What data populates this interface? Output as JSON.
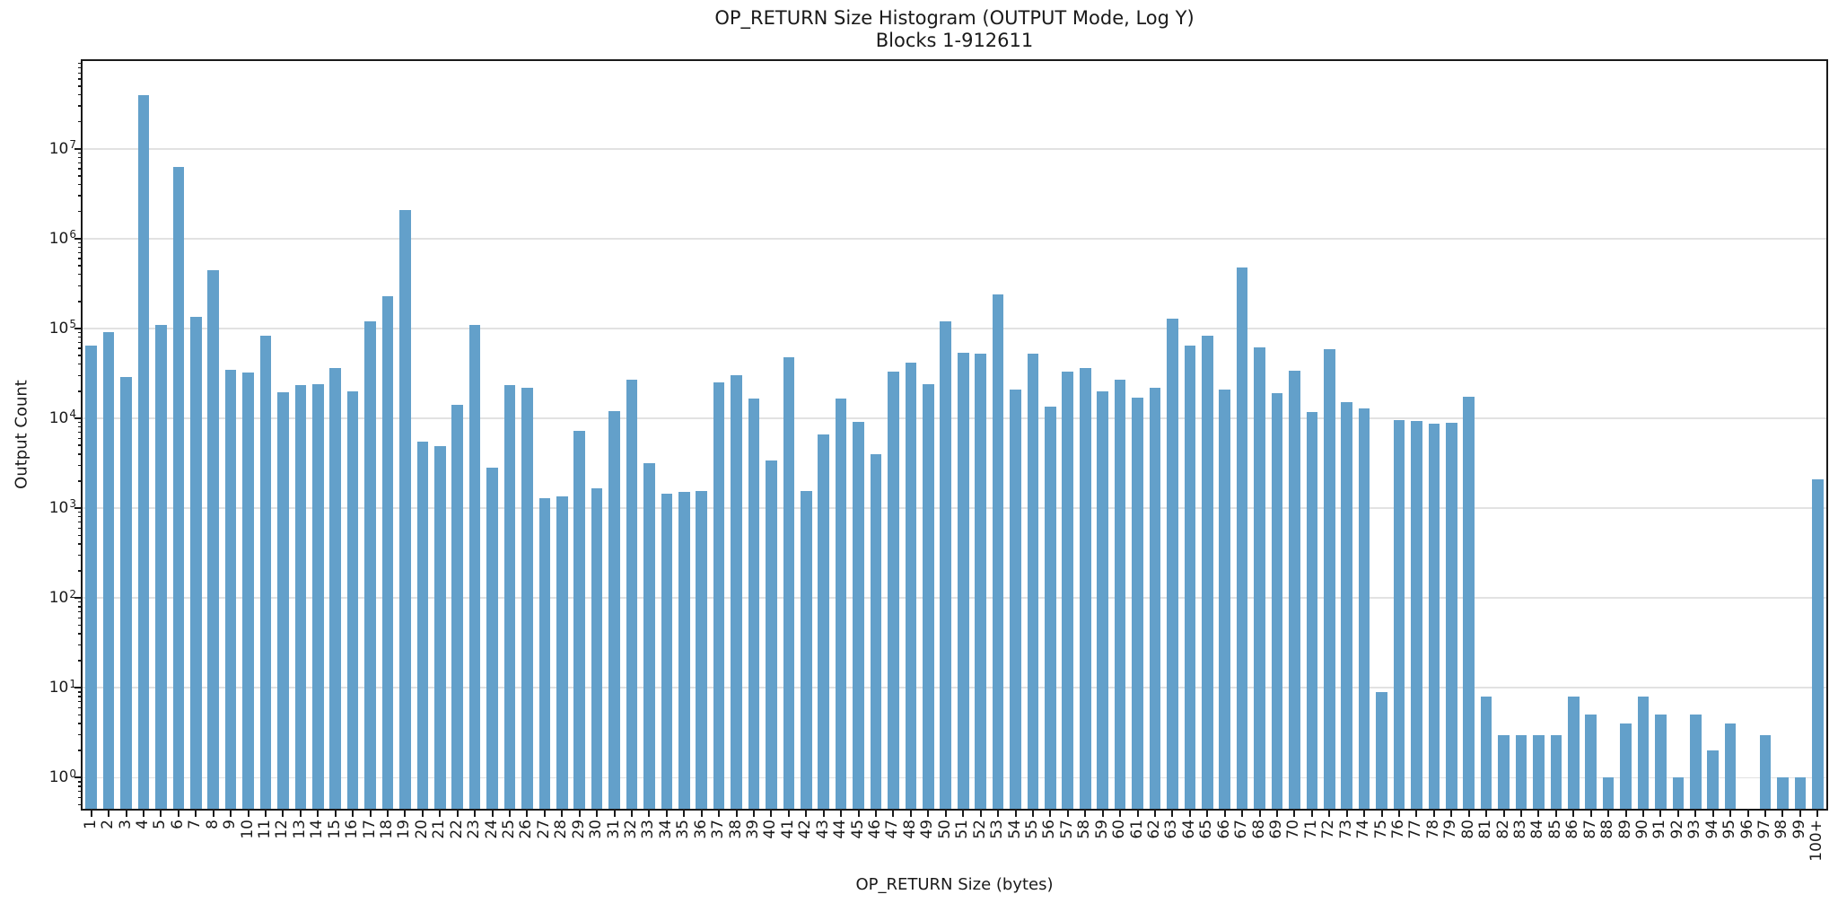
{
  "figure": {
    "background": "#ffffff",
    "text_color": "#1a1a1a",
    "grid_color": "#e2e2e2"
  },
  "chart_data": {
    "type": "bar",
    "title": "OP_RETURN Size Histogram (OUTPUT Mode, Log Y)",
    "subtitle": "Blocks 1-912611",
    "xlabel": "OP_RETURN Size (bytes)",
    "ylabel": "Output Count",
    "yscale": "log",
    "ylim": [
      0.45,
      95000000
    ],
    "ytick_exponents": [
      0,
      1,
      2,
      3,
      4,
      5,
      6,
      7
    ],
    "ytick_labels": [
      "10⁰",
      "10¹",
      "10²",
      "10³",
      "10⁴",
      "10⁵",
      "10⁶",
      "10⁷"
    ],
    "grid": "horizontal-major-only",
    "legend": "none",
    "bar_color": "#63a0ca",
    "categories": [
      "1",
      "2",
      "3",
      "4",
      "5",
      "6",
      "7",
      "8",
      "9",
      "10",
      "11",
      "12",
      "13",
      "14",
      "15",
      "16",
      "17",
      "18",
      "19",
      "20",
      "21",
      "22",
      "23",
      "24",
      "25",
      "26",
      "27",
      "28",
      "29",
      "30",
      "31",
      "32",
      "33",
      "34",
      "35",
      "36",
      "37",
      "38",
      "39",
      "40",
      "41",
      "42",
      "43",
      "44",
      "45",
      "46",
      "47",
      "48",
      "49",
      "50",
      "51",
      "52",
      "53",
      "54",
      "55",
      "56",
      "57",
      "58",
      "59",
      "60",
      "61",
      "62",
      "63",
      "64",
      "65",
      "66",
      "67",
      "68",
      "69",
      "70",
      "71",
      "72",
      "73",
      "74",
      "75",
      "76",
      "77",
      "78",
      "79",
      "80",
      "81",
      "82",
      "83",
      "84",
      "85",
      "86",
      "87",
      "88",
      "89",
      "90",
      "91",
      "92",
      "93",
      "94",
      "95",
      "96",
      "97",
      "98",
      "99",
      "100+"
    ],
    "values": [
      65000,
      91000,
      29000,
      40000000,
      110000,
      6300000,
      135000,
      450000,
      35000,
      32000,
      83000,
      19500,
      23500,
      24000,
      36000,
      20000,
      120000,
      230000,
      2100000,
      5500,
      4900,
      14000,
      110000,
      2800,
      23500,
      22000,
      1300,
      1350,
      7200,
      1650,
      12000,
      27000,
      3200,
      1450,
      1500,
      1550,
      25000,
      30000,
      16500,
      3400,
      48000,
      1550,
      6600,
      16500,
      9200,
      4000,
      33000,
      42000,
      24000,
      120000,
      54000,
      52000,
      240000,
      21000,
      53000,
      13500,
      33000,
      36000,
      20000,
      27000,
      17000,
      22000,
      130000,
      64000,
      83000,
      21000,
      480000,
      62000,
      19000,
      34000,
      11700,
      59000,
      15000,
      13000,
      9,
      9500,
      9400,
      8800,
      8900,
      17500,
      8,
      3,
      3,
      3,
      3,
      8,
      5,
      1,
      4,
      8,
      5,
      1,
      5,
      2,
      4,
      0,
      3,
      1,
      1,
      2100
    ]
  }
}
